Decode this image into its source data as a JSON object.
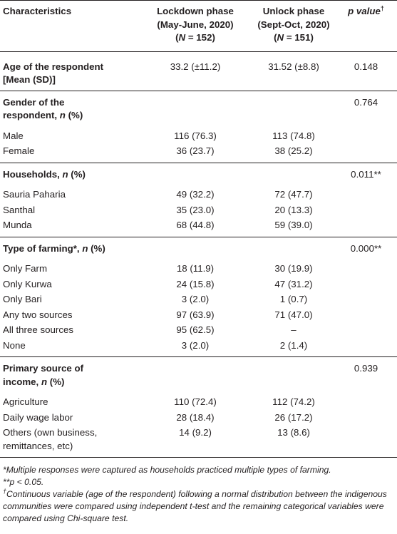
{
  "table": {
    "headers": {
      "col1": "Characteristics",
      "col2_line1": "Lockdown phase",
      "col2_line2": "(May-June, 2020)",
      "col2_n": "N",
      "col2_nval": " = 152)",
      "col3_line1": "Unlock phase",
      "col3_line2": "(Sept-Oct, 2020)",
      "col3_n": "N",
      "col3_nval": " = 151)",
      "col4": "p value",
      "col4_sup": "†"
    },
    "sections": [
      {
        "label1": "Age of the respondent",
        "label2": "[Mean (SD)]",
        "lockdown": "33.2 (±11.2)",
        "unlock": "31.52 (±8.8)",
        "p": "0.148",
        "rows": []
      },
      {
        "label1": "Gender of the",
        "label2": "respondent, ",
        "label_n": "n",
        "label_pct": " (%)",
        "p": "0.764",
        "rows": [
          {
            "name": "Male",
            "lockdown": "116 (76.3)",
            "unlock": "113 (74.8)"
          },
          {
            "name": "Female",
            "lockdown": "36 (23.7)",
            "unlock": "38 (25.2)"
          }
        ]
      },
      {
        "label1": "Households, ",
        "label_n": "n",
        "label_pct": " (%)",
        "p": "0.011**",
        "rows": [
          {
            "name": "Sauria Paharia",
            "lockdown": "49 (32.2)",
            "unlock": "72 (47.7)"
          },
          {
            "name": "Santhal",
            "lockdown": "35 (23.0)",
            "unlock": "20 (13.3)"
          },
          {
            "name": "Munda",
            "lockdown": "68 (44.8)",
            "unlock": "59 (39.0)"
          }
        ]
      },
      {
        "label1": "Type of farming*, ",
        "label_n": "n",
        "label_pct": " (%)",
        "p": "0.000**",
        "rows": [
          {
            "name": "Only Farm",
            "lockdown": "18 (11.9)",
            "unlock": "30 (19.9)"
          },
          {
            "name": "Only Kurwa",
            "lockdown": "24 (15.8)",
            "unlock": "47 (31.2)"
          },
          {
            "name": "Only Bari",
            "lockdown": "3 (2.0)",
            "unlock": "1 (0.7)"
          },
          {
            "name": "Any two sources",
            "lockdown": "97 (63.9)",
            "unlock": "71 (47.0)"
          },
          {
            "name": "All three sources",
            "lockdown": "95 (62.5)",
            "unlock": "–"
          },
          {
            "name": "None",
            "lockdown": "3 (2.0)",
            "unlock": "2 (1.4)"
          }
        ]
      },
      {
        "label1": "Primary source of",
        "label2": "income, ",
        "label_n": "n",
        "label_pct": " (%)",
        "p": "0.939",
        "rows": [
          {
            "name": "Agriculture",
            "lockdown": "110 (72.4)",
            "unlock": "112 (74.2)"
          },
          {
            "name": "Daily wage labor",
            "lockdown": "28 (18.4)",
            "unlock": "26 (17.2)"
          },
          {
            "name": "Others (own business,",
            "name2": "remittances, etc)",
            "lockdown": "14 (9.2)",
            "unlock": "13 (8.6)"
          }
        ]
      }
    ]
  },
  "footnotes": {
    "note1": "*Multiple responses were captured as households practiced multiple types of farming.",
    "note2": "**p < 0.05.",
    "note3_sup": "†",
    "note3": "Continuous variable (age of the respondent) following a normal distribution between the indigenous communities were compared using independent t-test and the remaining categorical variables were compared using Chi-square test."
  }
}
